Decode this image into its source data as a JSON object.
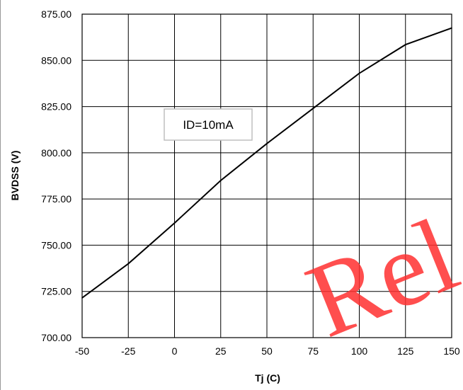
{
  "chart_data": {
    "type": "line",
    "title": "",
    "xlabel": "Tj (C)",
    "ylabel": "BVDSS (V)",
    "xlim": [
      -50,
      150
    ],
    "ylim": [
      700,
      875
    ],
    "x_ticks": [
      "-50",
      "-25",
      "0",
      "25",
      "50",
      "75",
      "100",
      "125",
      "150"
    ],
    "y_ticks": [
      "700.00",
      "725.00",
      "750.00",
      "775.00",
      "800.00",
      "825.00",
      "850.00",
      "875.00"
    ],
    "grid": true,
    "series": [
      {
        "x": [
          -50,
          -25,
          0,
          25,
          50,
          75,
          100,
          125,
          150
        ],
        "y": [
          721.5,
          740,
          762,
          785,
          805,
          824,
          843,
          858.5,
          867.5
        ],
        "color": "#000000"
      }
    ],
    "annotation": "ID=10mA",
    "watermark": "Rel"
  }
}
